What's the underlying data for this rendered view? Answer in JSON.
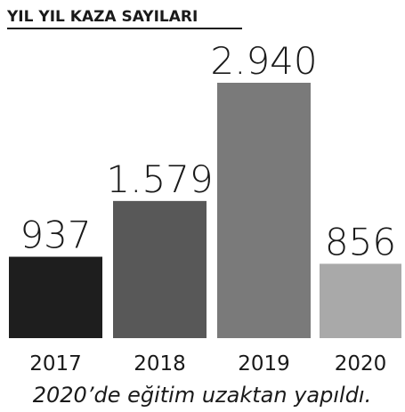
{
  "chart_data": {
    "type": "bar",
    "title": "YIL YIL KAZA SAYILARI",
    "categories": [
      "2017",
      "2018",
      "2019",
      "2020"
    ],
    "values": [
      937,
      1579,
      2940,
      856
    ],
    "value_labels": [
      "937",
      "1.579",
      "2.940",
      "856"
    ],
    "colors": [
      "#1e1e1e",
      "#585858",
      "#7a7a7a",
      "#a9a9a9"
    ],
    "caption": "2020’de eğitim uzaktan yapıldı."
  }
}
